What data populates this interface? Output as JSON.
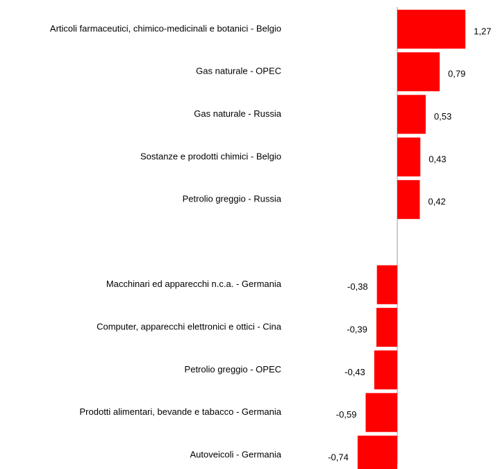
{
  "chart_data": {
    "type": "bar",
    "orientation": "horizontal",
    "color": "#ff0000",
    "categories": [
      "Articoli farmaceutici, chimico-medicinali e botanici - Belgio",
      "Gas naturale - OPEC",
      "Gas naturale - Russia",
      "Sostanze e prodotti chimici - Belgio",
      "Petrolio greggio - Russia",
      null,
      "Macchinari ed apparecchi n.c.a. - Germania",
      "Computer, apparecchi elettronici e ottici - Cina",
      "Petrolio greggio - OPEC",
      "Prodotti alimentari, bevande e tabacco - Germania",
      "Autoveicoli - Germania"
    ],
    "values": [
      1.27,
      0.79,
      0.53,
      0.43,
      0.42,
      null,
      -0.38,
      -0.39,
      -0.43,
      -0.59,
      -0.74
    ],
    "value_labels": [
      "1,27",
      "0,79",
      "0,53",
      "0,43",
      "0,42",
      null,
      "-0,38",
      "-0,39",
      "-0,43",
      "-0,59",
      "-0,74"
    ]
  }
}
